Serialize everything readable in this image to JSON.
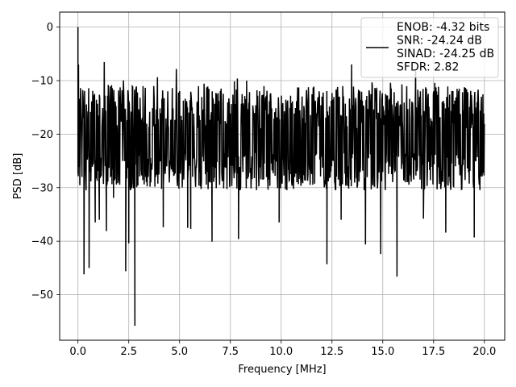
{
  "chart_data": {
    "type": "line",
    "title": "",
    "xlabel": "Frequency [MHz]",
    "ylabel": "PSD [dB]",
    "xlim": [
      -0.9,
      21.0
    ],
    "ylim": [
      -58.5,
      2.8
    ],
    "x_ticks": [
      0.0,
      2.5,
      5.0,
      7.5,
      10.0,
      12.5,
      15.0,
      17.5,
      20.0
    ],
    "x_tick_labels": [
      "0.0",
      "2.5",
      "5.0",
      "7.5",
      "10.0",
      "12.5",
      "15.0",
      "17.5",
      "20.0"
    ],
    "y_ticks": [
      0,
      -10,
      -20,
      -30,
      -40,
      -50
    ],
    "y_tick_labels": [
      "0",
      "−10",
      "−20",
      "−30",
      "−40",
      "−50"
    ],
    "grid": true,
    "legend_position": "top-right",
    "series": [
      {
        "name": "ENOB: -4.32 bits\nSNR: -24.24 dB\nSINAD: -24.25 dB\nSFDR: 2.82",
        "color": "#000000",
        "x_range": [
          0.0,
          20.0
        ],
        "noise_band": {
          "upper_typical": -11,
          "upper_peak": -6,
          "lower_typical": -27
        },
        "values": [
          {
            "x": 0.0,
            "y": 0.0
          },
          {
            "x": 0.03,
            "y": -7
          },
          {
            "x": 0.2,
            "y": -28
          },
          {
            "x": 0.3,
            "y": -46.2
          },
          {
            "x": 0.55,
            "y": -45.0
          },
          {
            "x": 0.85,
            "y": -36.5
          },
          {
            "x": 1.05,
            "y": -36.0
          },
          {
            "x": 1.4,
            "y": -38.1
          },
          {
            "x": 1.75,
            "y": -31.9
          },
          {
            "x": 2.35,
            "y": -45.6
          },
          {
            "x": 2.5,
            "y": -40.4
          },
          {
            "x": 2.8,
            "y": -55.8
          },
          {
            "x": 4.2,
            "y": -37.4
          },
          {
            "x": 5.4,
            "y": -37.5
          },
          {
            "x": 5.55,
            "y": -37.7
          },
          {
            "x": 6.6,
            "y": -40.1
          },
          {
            "x": 7.9,
            "y": -39.6
          },
          {
            "x": 9.9,
            "y": -36.5
          },
          {
            "x": 12.25,
            "y": -44.3
          },
          {
            "x": 12.95,
            "y": -36.0
          },
          {
            "x": 14.15,
            "y": -40.6
          },
          {
            "x": 14.9,
            "y": -42.4
          },
          {
            "x": 15.7,
            "y": -46.6
          },
          {
            "x": 17.0,
            "y": -35.8
          },
          {
            "x": 18.1,
            "y": -38.4
          },
          {
            "x": 19.5,
            "y": -39.3
          }
        ]
      }
    ]
  }
}
